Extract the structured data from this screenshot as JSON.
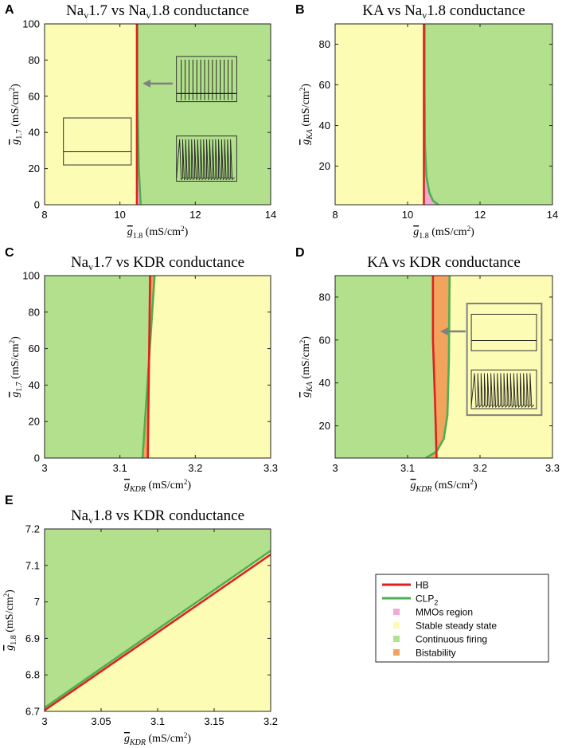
{
  "colors": {
    "yellow": "#fcfcb4",
    "green": "#b3e08c",
    "pink": "#f2aad2",
    "orange": "#f2a35c",
    "red": "#e02020",
    "greenline": "#4caf50",
    "arrow": "#808080"
  },
  "legend": {
    "items": [
      {
        "label": "HB",
        "sub": "",
        "kind": "line",
        "color": "#e02020"
      },
      {
        "label": "CLP",
        "sub": "2",
        "kind": "line",
        "color": "#4caf50"
      },
      {
        "label": "MMOs region",
        "sub": "",
        "kind": "patch",
        "color": "#f2aad2"
      },
      {
        "label": "Stable steady state",
        "sub": "",
        "kind": "patch",
        "color": "#fcfcb4"
      },
      {
        "label": "Continuous firing",
        "sub": "",
        "kind": "patch",
        "color": "#b3e08c"
      },
      {
        "label": "Bistability",
        "sub": "",
        "kind": "patch",
        "color": "#f2a35c"
      }
    ]
  },
  "chart_data": [
    {
      "panel": "A",
      "type": "area",
      "title": [
        "Na",
        "v",
        "1.7 vs Na",
        "v",
        "1.8 conductance"
      ],
      "xlabel": {
        "sym": "g",
        "sub": "1.8",
        "unit": " (mS/cm",
        "sup": "2",
        "end": ")"
      },
      "ylabel": {
        "sym": "g",
        "sub": "1.7",
        "unit": " (mS/cm",
        "sup": "2",
        "end": ")"
      },
      "xlim": [
        8,
        14
      ],
      "ylim": [
        0,
        100
      ],
      "xticks": [
        8,
        10,
        12,
        14
      ],
      "xticklabels": [
        "8",
        "10",
        "12",
        "14"
      ],
      "yticks": [
        0,
        20,
        40,
        60,
        80,
        100
      ],
      "yticklabels": [
        "0",
        "20",
        "40",
        "60",
        "80",
        "100"
      ],
      "left_region": "yellow",
      "right_region": "green",
      "HB": {
        "x": [
          10.45,
          10.45
        ],
        "y": [
          0,
          100
        ]
      },
      "CLP2": {
        "x": [
          10.55,
          10.5,
          10.46,
          10.46
        ],
        "y": [
          0,
          20,
          60,
          100
        ]
      },
      "mid_region": "pink",
      "insets": [
        {
          "kind": "flat",
          "xr": [
            8.5,
            10.3
          ],
          "yr": [
            22,
            48
          ]
        },
        {
          "kind": "spikes_tall",
          "xr": [
            11.5,
            13.1
          ],
          "yr": [
            57,
            82
          ]
        },
        {
          "kind": "spikes",
          "xr": [
            11.5,
            13.1
          ],
          "yr": [
            13,
            38
          ]
        }
      ],
      "arrow": {
        "from": [
          11.4,
          67
        ],
        "to": [
          10.6,
          67
        ]
      }
    },
    {
      "panel": "B",
      "type": "area",
      "title": [
        "KA vs Na",
        "v",
        "1.8 conductance"
      ],
      "xlabel": {
        "sym": "g",
        "sub": "1.8",
        "unit": " (mS/cm",
        "sup": "2",
        "end": ")"
      },
      "ylabel": {
        "sym": "g",
        "sub": "KA",
        "unit": " (mS/cm",
        "sup": "2",
        "end": ")"
      },
      "xlim": [
        8,
        14
      ],
      "ylim": [
        1,
        90
      ],
      "xticks": [
        8,
        10,
        12,
        14
      ],
      "xticklabels": [
        "8",
        "10",
        "12",
        "14"
      ],
      "yticks": [
        20,
        40,
        60,
        80
      ],
      "yticklabels": [
        "20",
        "40",
        "60",
        "80"
      ],
      "left_region": "yellow",
      "right_region": "green",
      "HB": {
        "x": [
          10.45,
          10.45
        ],
        "y": [
          1,
          90
        ]
      },
      "CLP2": {
        "x": [
          10.85,
          10.7,
          10.6,
          10.52,
          10.48,
          10.47,
          10.47
        ],
        "y": [
          1,
          3,
          7,
          15,
          30,
          60,
          90
        ]
      },
      "mid_region": "pink",
      "insets": [],
      "arrow": null
    },
    {
      "panel": "C",
      "type": "area",
      "title": [
        "Na",
        "v",
        "1.7 vs KDR conductance"
      ],
      "xlabel": {
        "sym": "g",
        "sub": "KDR",
        "unit": " (mS/cm",
        "sup": "2",
        "end": ")"
      },
      "ylabel": {
        "sym": "g",
        "sub": "1.7",
        "unit": " (mS/cm",
        "sup": "2",
        "end": ")"
      },
      "xlim": [
        3,
        3.3
      ],
      "ylim": [
        0,
        100
      ],
      "xticks": [
        3,
        3.1,
        3.2,
        3.3
      ],
      "xticklabels": [
        "3",
        "3.1",
        "3.2",
        "3.3"
      ],
      "yticks": [
        0,
        20,
        40,
        60,
        80,
        100
      ],
      "yticklabels": [
        "0",
        "20",
        "40",
        "60",
        "80",
        "100"
      ],
      "left_region": "green",
      "right_region": "yellow",
      "HB": {
        "x": [
          3.137,
          3.14
        ],
        "y": [
          0,
          100
        ]
      },
      "CLP2": {
        "x": [
          3.13,
          3.146
        ],
        "y": [
          0,
          100
        ]
      },
      "mid_region": "orange",
      "insets": [],
      "arrow": null
    },
    {
      "panel": "D",
      "type": "area",
      "title": [
        "KA vs KDR conductance"
      ],
      "xlabel": {
        "sym": "g",
        "sub": "KDR",
        "unit": " (mS/cm",
        "sup": "2",
        "end": ")"
      },
      "ylabel": {
        "sym": "g",
        "sub": "KA",
        "unit": " (mS/cm",
        "sup": "2",
        "end": ")"
      },
      "xlim": [
        3,
        3.3
      ],
      "ylim": [
        5,
        90
      ],
      "xticks": [
        3,
        3.1,
        3.2,
        3.3
      ],
      "xticklabels": [
        "3",
        "3.1",
        "3.2",
        "3.3"
      ],
      "yticks": [
        20,
        40,
        60,
        80
      ],
      "yticklabels": [
        "20",
        "40",
        "60",
        "80"
      ],
      "left_region": "green",
      "right_region": "yellow",
      "HB": {
        "x": [
          3.14,
          3.138,
          3.135,
          3.135
        ],
        "y": [
          5,
          30,
          60,
          90
        ]
      },
      "CLP2": {
        "x": [
          3.125,
          3.14,
          3.15,
          3.155,
          3.157,
          3.158
        ],
        "y": [
          5,
          8,
          14,
          25,
          50,
          90
        ]
      },
      "mid_region": "orange",
      "insets": [
        {
          "kind": "frame",
          "xr": [
            3.182,
            3.285
          ],
          "yr": [
            25,
            77
          ]
        },
        {
          "kind": "flat",
          "xr": [
            3.188,
            3.278
          ],
          "yr": [
            55,
            72
          ]
        },
        {
          "kind": "spikes",
          "xr": [
            3.188,
            3.278
          ],
          "yr": [
            28,
            46
          ]
        }
      ],
      "arrow": {
        "from": [
          3.18,
          64
        ],
        "to": [
          3.145,
          64
        ]
      }
    },
    {
      "panel": "E",
      "type": "area",
      "title": [
        "Na",
        "v",
        "1.8 vs KDR conductance"
      ],
      "xlabel": {
        "sym": "g",
        "sub": "KDR",
        "unit": " (mS/cm",
        "sup": "2",
        "end": ")"
      },
      "ylabel": {
        "sym": "g",
        "sub": "1.8",
        "unit": " (mS/cm",
        "sup": "2",
        "end": ")"
      },
      "xlim": [
        3,
        3.2
      ],
      "ylim": [
        6.7,
        7.2
      ],
      "xticks": [
        3,
        3.05,
        3.1,
        3.15,
        3.2
      ],
      "xticklabels": [
        "3",
        "3.05",
        "3.1",
        "3.15",
        "3.2"
      ],
      "yticks": [
        6.7,
        6.8,
        6.9,
        7,
        7.1,
        7.2
      ],
      "yticklabels": [
        "6.7",
        "6.8",
        "6.9",
        "7",
        "7.1",
        "7.2"
      ],
      "upper_region": "green",
      "lower_region": "yellow",
      "HB": {
        "x": [
          3,
          3.2
        ],
        "y": [
          6.703,
          7.13
        ]
      },
      "CLP2": {
        "x": [
          3,
          3.2
        ],
        "y": [
          6.71,
          7.14
        ]
      },
      "insets": [],
      "arrow": null
    }
  ]
}
